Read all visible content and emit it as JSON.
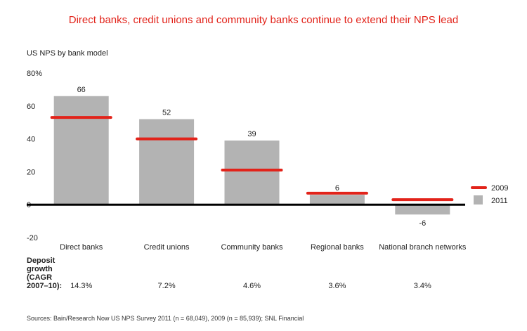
{
  "chart_data": {
    "type": "bar",
    "title": "Direct banks, credit unions and community banks continue to extend their NPS lead",
    "ylabel": "US NPS by bank model",
    "ylim": [
      -20,
      80
    ],
    "yticks": [
      {
        "value": 80,
        "label": "80%"
      },
      {
        "value": 60,
        "label": "60"
      },
      {
        "value": 40,
        "label": "40"
      },
      {
        "value": 20,
        "label": "20"
      },
      {
        "value": 0,
        "label": "0"
      },
      {
        "value": -20,
        "label": "-20"
      }
    ],
    "categories": [
      "Direct banks",
      "Credit unions",
      "Community banks",
      "Regional banks",
      "National branch networks"
    ],
    "series": [
      {
        "name": "2011",
        "kind": "bar",
        "color": "#b3b3b3",
        "values": [
          66,
          52,
          39,
          6,
          -6
        ],
        "labels": [
          "66",
          "52",
          "39",
          "6",
          "-6"
        ]
      },
      {
        "name": "2009",
        "kind": "marker",
        "color": "#e2231a",
        "values": [
          53,
          40,
          21,
          7,
          3
        ]
      }
    ],
    "legend_position": "right",
    "deposit_growth": {
      "label_lines": [
        "Deposit",
        "growth",
        "(CAGR",
        "2007–10):"
      ],
      "values": [
        "14.3%",
        "7.2%",
        "4.6%",
        "3.6%",
        "3.4%"
      ]
    },
    "source": "Sources: Bain/Research Now US NPS Survey 2011 (n = 68,049),  2009 (n = 85,939); SNL Financial"
  }
}
